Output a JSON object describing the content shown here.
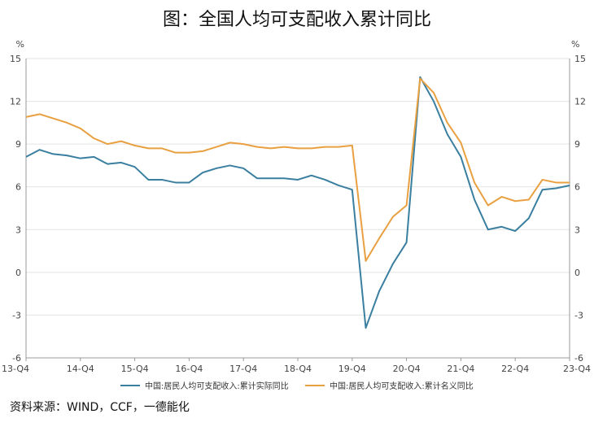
{
  "page": {
    "title": "图：全国人均可支配收入累计同比",
    "source": "资料来源：WIND，CCF，一德能化"
  },
  "chart_data": {
    "type": "line",
    "title": "图：全国人均可支配收入累计同比",
    "y_unit_left": "%",
    "y_unit_right": "%",
    "ylim": [
      -6,
      15
    ],
    "yticks": [
      -6,
      -3,
      0,
      3,
      6,
      9,
      12,
      15
    ],
    "xlim": [
      0,
      40
    ],
    "x_ticks": [
      {
        "label": "13-Q4",
        "x": 0
      },
      {
        "label": "14-Q4",
        "x": 4
      },
      {
        "label": "15-Q4",
        "x": 8
      },
      {
        "label": "16-Q4",
        "x": 12
      },
      {
        "label": "17-Q4",
        "x": 16
      },
      {
        "label": "18-Q4",
        "x": 20
      },
      {
        "label": "19-Q4",
        "x": 24
      },
      {
        "label": "20-Q4",
        "x": 28
      },
      {
        "label": "21-Q4",
        "x": 32
      },
      {
        "label": "22-Q4",
        "x": 36
      },
      {
        "label": "23-Q4",
        "x": 40
      }
    ],
    "grid": {
      "horizontal": true,
      "vertical": false
    },
    "legend_position": "bottom",
    "series": [
      {
        "name": "中国:居民人均可支配收入:累计实际同比",
        "color": "#3a7fa0",
        "values": [
          8.1,
          8.6,
          8.3,
          8.2,
          8.0,
          8.1,
          7.6,
          7.7,
          7.4,
          6.5,
          6.5,
          6.3,
          6.3,
          7.0,
          7.3,
          7.5,
          7.3,
          6.6,
          6.6,
          6.6,
          6.5,
          6.8,
          6.5,
          6.1,
          5.8,
          -3.9,
          -1.3,
          0.6,
          2.1,
          13.7,
          12.0,
          9.7,
          8.1,
          5.1,
          3.0,
          3.2,
          2.9,
          3.8,
          5.8,
          5.9,
          6.1
        ]
      },
      {
        "name": "中国:居民人均可支配收入:累计名义同比",
        "color": "#e8a040",
        "values": [
          10.9,
          11.1,
          10.8,
          10.5,
          10.1,
          9.4,
          9.0,
          9.2,
          8.9,
          8.7,
          8.7,
          8.4,
          8.4,
          8.5,
          8.8,
          9.1,
          9.0,
          8.8,
          8.7,
          8.8,
          8.7,
          8.7,
          8.8,
          8.8,
          8.9,
          0.8,
          2.4,
          3.9,
          4.7,
          13.6,
          12.6,
          10.5,
          9.1,
          6.3,
          4.7,
          5.3,
          5.0,
          5.1,
          6.5,
          6.3,
          6.3
        ]
      }
    ]
  }
}
